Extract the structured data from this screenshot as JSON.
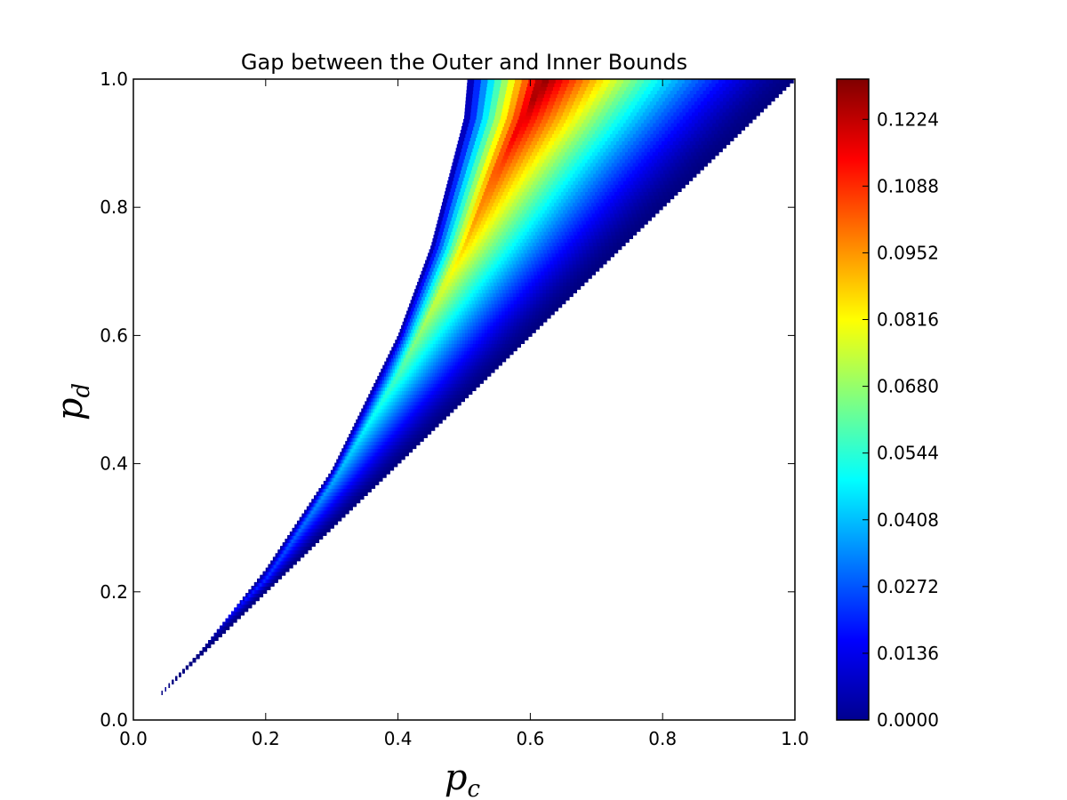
{
  "chart_data": {
    "type": "heatmap",
    "title": "Gap between the Outer and Inner Bounds",
    "xlabel": {
      "var": "p",
      "sub": "c"
    },
    "ylabel": {
      "var": "p",
      "sub": "d"
    },
    "xlim": [
      0.0,
      1.0
    ],
    "ylim": [
      0.0,
      1.0
    ],
    "x_ticks": [
      "0.0",
      "0.2",
      "0.4",
      "0.6",
      "0.8",
      "1.0"
    ],
    "y_ticks": [
      "0.0",
      "0.2",
      "0.4",
      "0.6",
      "0.8",
      "1.0"
    ],
    "grid": false,
    "colormap": "jet",
    "colorbar": {
      "range": [
        0.0,
        0.1306
      ],
      "ticks": [
        "0.0000",
        "0.0136",
        "0.0272",
        "0.0408",
        "0.0544",
        "0.0680",
        "0.0816",
        "0.0952",
        "0.1088",
        "0.1224"
      ]
    },
    "region": {
      "lower_boundary": "p_d = p_c",
      "upper_boundary_points": [
        [
          0.04,
          0.04
        ],
        [
          0.1,
          0.105
        ],
        [
          0.2,
          0.235
        ],
        [
          0.3,
          0.39
        ],
        [
          0.4,
          0.6
        ],
        [
          0.45,
          0.74
        ],
        [
          0.5,
          0.94
        ],
        [
          0.505,
          1.0
        ]
      ],
      "peak_ridge_points": [
        [
          0.05,
          0.07
        ],
        [
          0.2,
          0.22
        ],
        [
          0.3,
          0.37
        ],
        [
          0.4,
          0.54
        ],
        [
          0.5,
          0.74
        ],
        [
          0.55,
          0.86
        ],
        [
          0.6,
          0.96
        ],
        [
          0.62,
          1.0
        ]
      ],
      "peak_value_at_top": 0.13
    }
  }
}
